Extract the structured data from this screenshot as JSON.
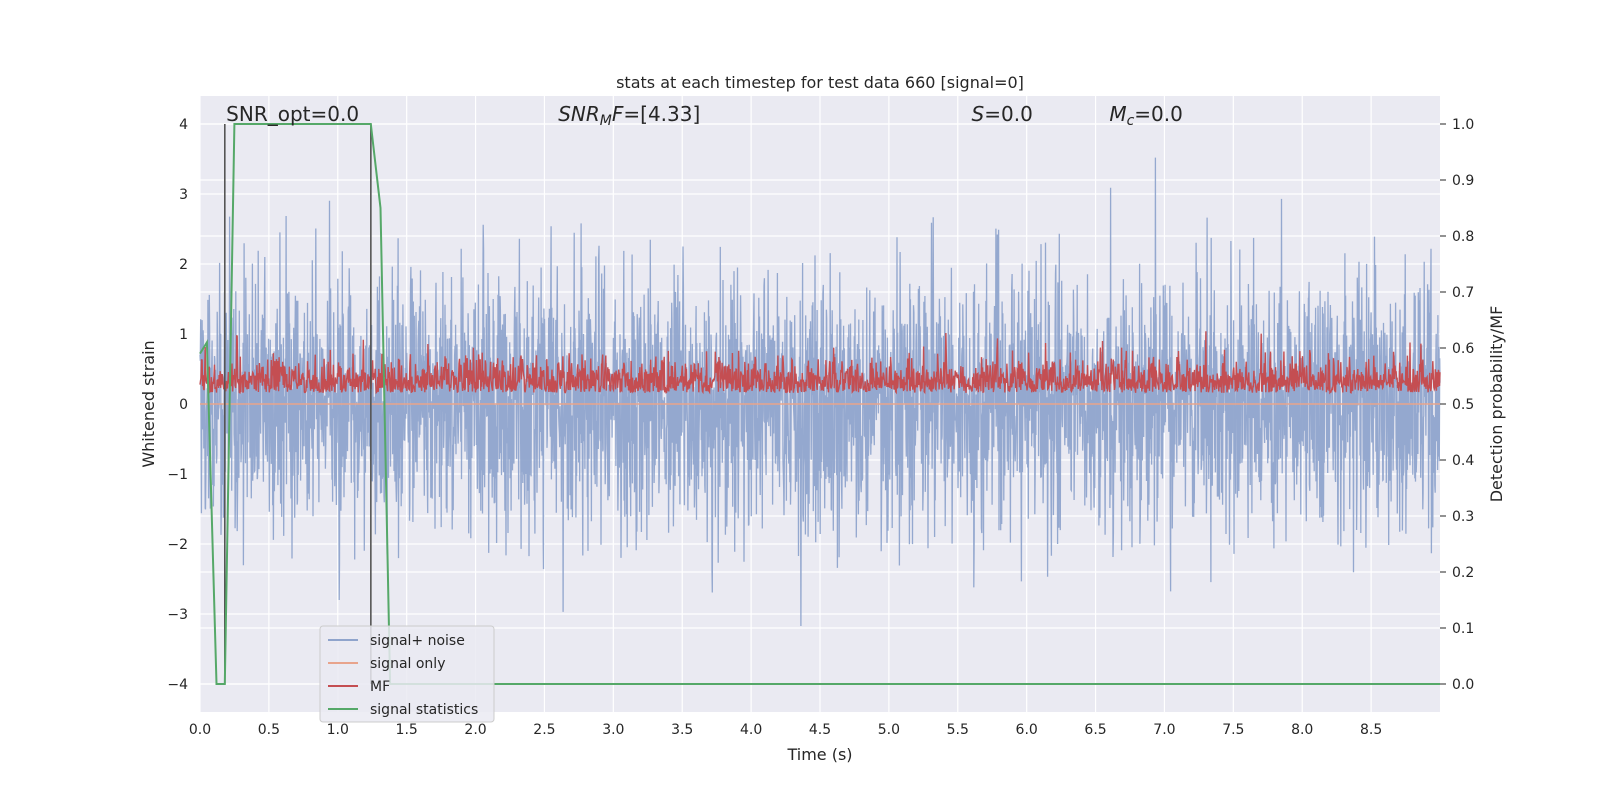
{
  "chart_data": {
    "type": "line",
    "title": "stats at each timestep for test data 660 [signal=0]",
    "xlabel": "Time (s)",
    "ylabel_left": "Whitened strain",
    "ylabel_right": "Detection probability/MF",
    "xlim": [
      0.0,
      9.0
    ],
    "ylim_left": [
      -4.4,
      4.4
    ],
    "ylim_right": [
      -0.05,
      1.05
    ],
    "xticks": [
      "0.0",
      "0.5",
      "1.0",
      "1.5",
      "2.0",
      "2.5",
      "3.0",
      "3.5",
      "4.0",
      "4.5",
      "5.0",
      "5.5",
      "6.0",
      "6.5",
      "7.0",
      "7.5",
      "8.0",
      "8.5"
    ],
    "yticks_left": [
      "−4",
      "−3",
      "−2",
      "−1",
      "0",
      "1",
      "2",
      "3",
      "4"
    ],
    "yticks_right": [
      "0.0",
      "0.1",
      "0.2",
      "0.3",
      "0.4",
      "0.5",
      "0.6",
      "0.7",
      "0.8",
      "0.9",
      "1.0"
    ],
    "grid": true,
    "legend_position": "lower-left",
    "annotations": [
      {
        "id": "snr-opt",
        "parts": [
          {
            "text": "SNR_opt=0.0",
            "style": "normal"
          }
        ],
        "x": 0.19
      },
      {
        "id": "snr-mf",
        "parts": [
          {
            "text": "SNR",
            "style": "italic"
          },
          {
            "text": "M",
            "style": "italic-sub"
          },
          {
            "text": "F",
            "style": "italic"
          },
          {
            "text": "=[4.33]",
            "style": "normal"
          }
        ],
        "x": 2.6
      },
      {
        "id": "s-value",
        "parts": [
          {
            "text": "S",
            "style": "italic"
          },
          {
            "text": "=0.0",
            "style": "normal"
          }
        ],
        "x": 5.6
      },
      {
        "id": "mc-value",
        "parts": [
          {
            "text": "M",
            "style": "italic"
          },
          {
            "text": "c",
            "style": "italic-sub"
          },
          {
            "text": "=0.0",
            "style": "normal"
          }
        ],
        "x": 6.6
      }
    ],
    "vertical_markers": [
      0.18,
      1.24
    ],
    "series": [
      {
        "name": "signal+ noise",
        "axis": "left",
        "color": "#8fa4cc",
        "kind": "noise",
        "amplitude_rms": 1.0,
        "max_abs": 3.7
      },
      {
        "name": "signal only",
        "axis": "left",
        "color": "#e8a48c",
        "kind": "flat",
        "value": 0.0
      },
      {
        "name": "MF",
        "axis": "right",
        "color": "#c44e52",
        "kind": "mf",
        "baseline": 0.52,
        "range": [
          0.5,
          0.63
        ]
      },
      {
        "name": "signal statistics",
        "axis": "right",
        "color": "#55a868",
        "kind": "steps",
        "x": [
          0.0,
          0.05,
          0.12,
          0.18,
          0.25,
          1.24,
          1.31,
          1.38,
          9.0
        ],
        "y": [
          0.59,
          0.61,
          0.0,
          0.0,
          1.0,
          1.0,
          0.85,
          0.0,
          0.0
        ]
      }
    ]
  }
}
